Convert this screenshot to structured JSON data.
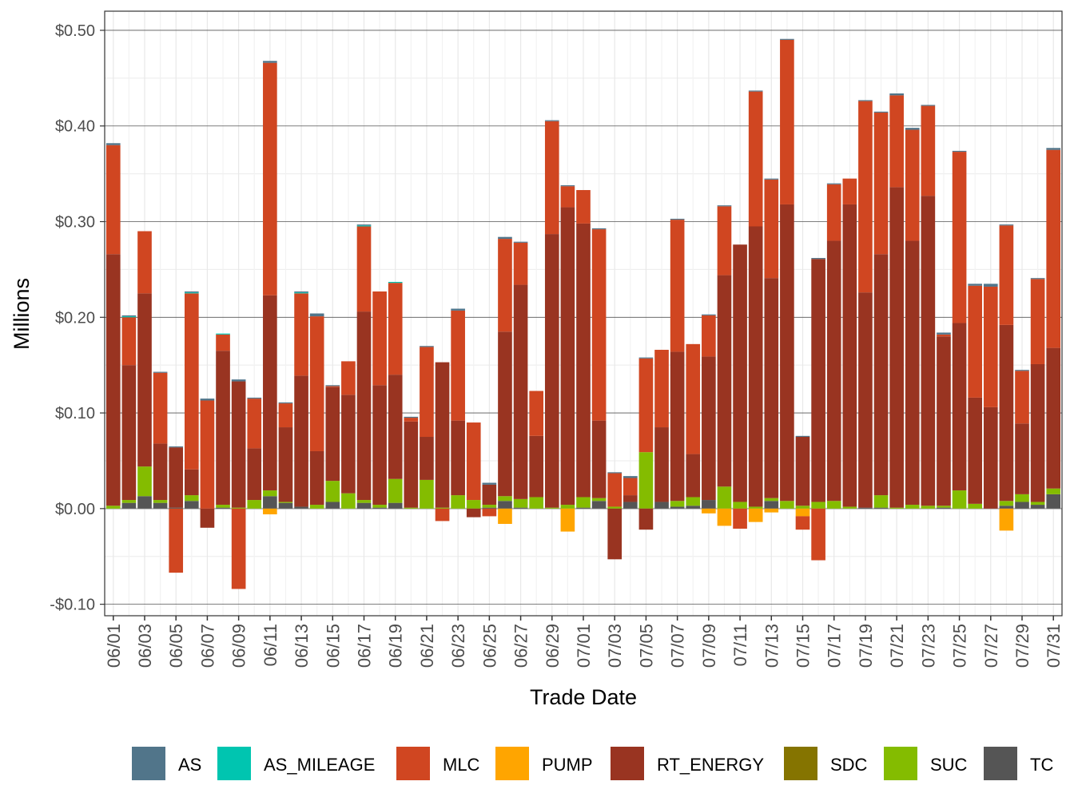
{
  "chart_data": {
    "type": "bar",
    "stacked": true,
    "xlabel": "Trade Date",
    "ylabel": "Millions",
    "ylim": [
      -0.112,
      0.52
    ],
    "yticks": [
      -0.1,
      0.0,
      0.1,
      0.2,
      0.3,
      0.4,
      0.5
    ],
    "ytick_labels": [
      "-$0.10",
      "$0.00",
      "$0.10",
      "$0.20",
      "$0.30",
      "$0.40",
      "$0.50"
    ],
    "grid": true,
    "legend_position": "bottom",
    "categories": [
      "06/01",
      "06/02",
      "06/03",
      "06/04",
      "06/05",
      "06/06",
      "06/07",
      "06/08",
      "06/09",
      "06/10",
      "06/11",
      "06/12",
      "06/13",
      "06/14",
      "06/15",
      "06/16",
      "06/17",
      "06/18",
      "06/19",
      "06/20",
      "06/21",
      "06/22",
      "06/23",
      "06/24",
      "06/25",
      "06/26",
      "06/27",
      "06/28",
      "06/29",
      "06/30",
      "07/01",
      "07/02",
      "07/03",
      "07/04",
      "07/05",
      "07/06",
      "07/07",
      "07/08",
      "07/09",
      "07/10",
      "07/11",
      "07/12",
      "07/13",
      "07/14",
      "07/15",
      "07/16",
      "07/17",
      "07/18",
      "07/19",
      "07/20",
      "07/21",
      "07/22",
      "07/23",
      "07/24",
      "07/25",
      "07/26",
      "07/27",
      "07/28",
      "07/29",
      "07/30",
      "07/31"
    ],
    "xtick_labels": [
      "06/01",
      "06/03",
      "06/05",
      "06/07",
      "06/09",
      "06/11",
      "06/13",
      "06/15",
      "06/17",
      "06/19",
      "06/21",
      "06/23",
      "06/25",
      "06/27",
      "06/29",
      "07/01",
      "07/03",
      "07/05",
      "07/07",
      "07/09",
      "07/11",
      "07/13",
      "07/15",
      "07/17",
      "07/19",
      "07/21",
      "07/23",
      "07/25",
      "07/27",
      "07/29",
      "07/31"
    ],
    "series": [
      {
        "name": "AS",
        "color": "#51758A",
        "values": [
          0.002,
          0.001,
          0,
          0.001,
          0.001,
          0.001,
          0.002,
          0,
          0.002,
          0.001,
          0.002,
          0.001,
          0.001,
          0.003,
          0.001,
          0,
          0.001,
          0,
          0,
          0.001,
          0.001,
          0,
          0.002,
          0,
          0.002,
          0.002,
          0.001,
          0,
          0.001,
          0.001,
          0,
          0.001,
          0.001,
          0.002,
          0.001,
          0,
          0.001,
          0,
          0.001,
          0.001,
          0,
          0.001,
          0.001,
          0.001,
          0.001,
          0.001,
          0.001,
          0,
          0.001,
          0.001,
          0.002,
          0.002,
          0.001,
          0.002,
          0.001,
          0.002,
          0.003,
          0.001,
          0.001,
          0.001,
          0.002
        ]
      },
      {
        "name": "AS_MILEAGE",
        "color": "#00C5B0",
        "values": [
          0,
          0.001,
          0,
          0,
          0,
          0.001,
          0,
          0.001,
          0,
          0,
          0,
          0,
          0.001,
          0,
          0,
          0,
          0.001,
          0,
          0.001,
          0,
          0,
          0,
          0,
          0,
          0,
          0,
          0,
          0,
          0,
          0,
          0,
          0,
          0,
          0,
          0,
          0,
          0,
          0,
          0,
          0,
          0,
          0,
          0,
          0,
          0,
          0,
          0,
          0,
          0,
          0,
          0,
          0,
          0,
          0,
          0,
          0,
          0,
          0,
          0,
          0,
          0
        ]
      },
      {
        "name": "MLC",
        "color": "#D04621",
        "values": [
          0.114,
          0.05,
          0.065,
          0.074,
          -0.067,
          0.184,
          0.113,
          0.017,
          -0.084,
          0.052,
          0.243,
          0.025,
          0.086,
          0.141,
          0.001,
          0.035,
          0.089,
          0.098,
          0.096,
          0.004,
          0.094,
          -0.013,
          0.115,
          0.081,
          -0.008,
          0.097,
          0.044,
          0.047,
          0.118,
          0.022,
          0.035,
          0.2,
          0.035,
          0.018,
          0.098,
          0.081,
          0.138,
          0.115,
          0.043,
          0.072,
          -0.021,
          0.141,
          0.103,
          0.172,
          -0.014,
          -0.054,
          0.059,
          0.027,
          0.2,
          0.148,
          0.096,
          0.116,
          0.094,
          0.002,
          0.179,
          0.117,
          0.126,
          0.104,
          0.055,
          0.089,
          0.207
        ]
      },
      {
        "name": "PUMP",
        "color": "#FFA500",
        "values": [
          0,
          0,
          0,
          0,
          0,
          0,
          0,
          0,
          0,
          0,
          -0.006,
          0,
          0,
          0,
          0,
          0,
          0,
          0,
          0,
          0,
          0,
          0,
          0,
          0,
          0,
          -0.016,
          0,
          0,
          0,
          -0.024,
          0,
          0,
          0,
          0,
          0,
          0,
          0,
          0,
          -0.005,
          -0.018,
          0,
          -0.014,
          -0.004,
          0,
          -0.008,
          0,
          0,
          0,
          0,
          0,
          0,
          0,
          0,
          0,
          0,
          0,
          0,
          -0.023,
          0,
          0,
          0
        ]
      },
      {
        "name": "RT_ENERGY",
        "color": "#993421",
        "values": [
          0.263,
          0.141,
          0.181,
          0.059,
          0.063,
          0.027,
          -0.02,
          0.161,
          0.132,
          0.054,
          0.204,
          0.078,
          0.137,
          0.056,
          0.098,
          0.103,
          0.197,
          0.125,
          0.109,
          0.09,
          0.045,
          0.152,
          0.078,
          -0.009,
          0.021,
          0.172,
          0.224,
          0.064,
          0.286,
          0.311,
          0.286,
          0.081,
          -0.053,
          0.007,
          -0.022,
          0.078,
          0.156,
          0.045,
          0.15,
          0.221,
          0.269,
          0.293,
          0.23,
          0.31,
          0.072,
          0.254,
          0.272,
          0.316,
          0.225,
          0.252,
          0.335,
          0.276,
          0.324,
          0.177,
          0.175,
          0.111,
          0.106,
          0.184,
          0.074,
          0.144,
          0.147
        ]
      },
      {
        "name": "SDC",
        "color": "#857400",
        "values": [
          0,
          0,
          0,
          0,
          0,
          0,
          0,
          0,
          0,
          0,
          0,
          0,
          0,
          0,
          0,
          0,
          0,
          0,
          0,
          0,
          0,
          0,
          0,
          0,
          0,
          0,
          0,
          0,
          0,
          0,
          0,
          0,
          0,
          0,
          0,
          0,
          0,
          0,
          0,
          0,
          0,
          0,
          0,
          0,
          0,
          0,
          0,
          0,
          0,
          0,
          0,
          0,
          0,
          0,
          0,
          0,
          0,
          0,
          0,
          0,
          0
        ]
      },
      {
        "name": "SUC",
        "color": "#84BC00",
        "values": [
          0.003,
          0.003,
          0.031,
          0.003,
          0,
          0.006,
          0,
          0.003,
          0.001,
          0.009,
          0.006,
          0.001,
          0,
          0.004,
          0.022,
          0.016,
          0.003,
          0.003,
          0.025,
          0.001,
          0.03,
          0.001,
          0.014,
          0.009,
          0.003,
          0.005,
          0.009,
          0.012,
          0.001,
          0.004,
          0.011,
          0.003,
          0.002,
          0,
          0.059,
          0,
          0.006,
          0.009,
          0,
          0.023,
          0.007,
          0.002,
          0.003,
          0.008,
          0.003,
          0.007,
          0.008,
          0.002,
          0,
          0.013,
          0.001,
          0.004,
          0.003,
          0.002,
          0.019,
          0.005,
          0,
          0.005,
          0.008,
          0.003,
          0.006
        ]
      },
      {
        "name": "TC",
        "color": "#555555",
        "values": [
          0,
          0.006,
          0.013,
          0.006,
          0.001,
          0.008,
          0,
          0.001,
          0,
          0,
          0.013,
          0.006,
          0.002,
          0,
          0.007,
          0,
          0.006,
          0.001,
          0.006,
          0,
          0,
          0,
          0,
          0,
          0.001,
          0.008,
          0.001,
          0,
          0,
          0,
          0.001,
          0.008,
          0,
          0.007,
          0,
          0.007,
          0.002,
          0.003,
          0.009,
          0,
          0,
          0,
          0.008,
          0,
          0,
          0,
          0,
          0,
          0.001,
          0.001,
          0,
          0,
          0,
          0.001,
          0,
          0,
          0,
          0.003,
          0.007,
          0.004,
          0.015
        ]
      }
    ]
  }
}
